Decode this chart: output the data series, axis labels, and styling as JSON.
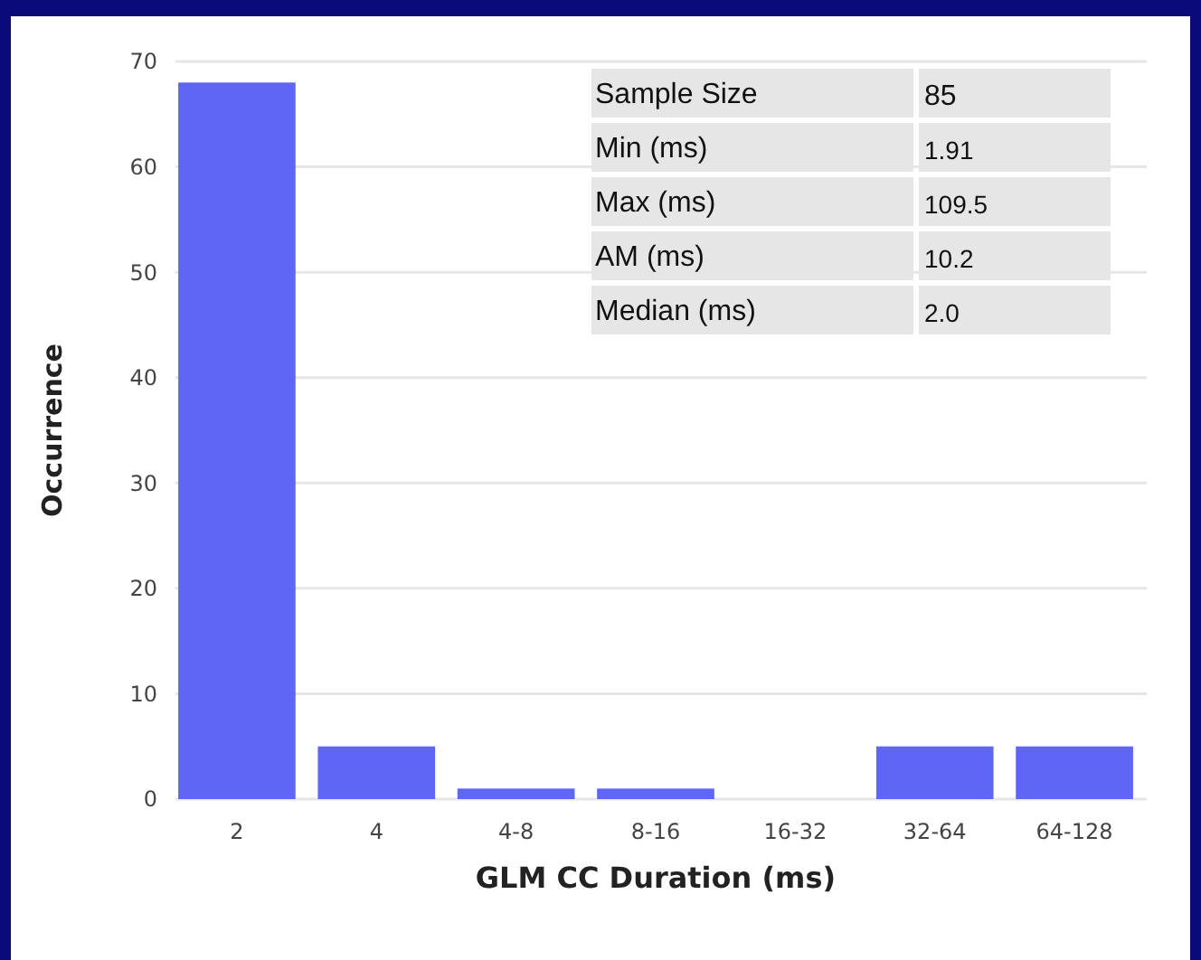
{
  "chart_data": {
    "type": "histogram",
    "xlabel": "GLM CC Duration (ms)",
    "ylabel": "Occurrence",
    "categories": [
      "2",
      "4",
      "4-8",
      "8-16",
      "16-32",
      "32-64",
      "64-128"
    ],
    "values": [
      68,
      5,
      1,
      1,
      0,
      5,
      5
    ],
    "color": "#5f66f6",
    "ylim": [
      0,
      70
    ],
    "yticks": [
      0,
      10,
      20,
      30,
      40,
      50,
      60,
      70
    ],
    "grid": "y",
    "annotations": [
      "Sample Size",
      "85",
      "Min (ms)",
      "1.91",
      "Max (ms)",
      "109.5",
      "AM (ms)",
      "10.2",
      "Median (ms)",
      "2.0"
    ]
  }
}
